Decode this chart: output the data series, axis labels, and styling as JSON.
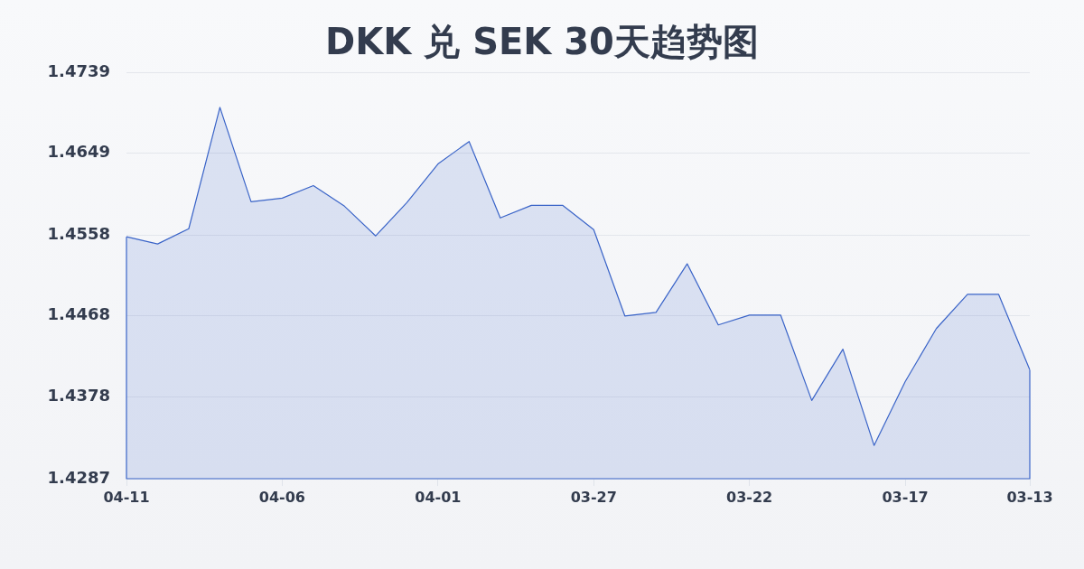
{
  "chart_data": {
    "type": "area",
    "title": "DKK 兑 SEK 30天趋势图",
    "categories": [
      "04-11",
      null,
      null,
      null,
      null,
      "04-06",
      null,
      null,
      null,
      null,
      "04-01",
      null,
      null,
      null,
      null,
      "03-27",
      null,
      null,
      null,
      null,
      "03-22",
      null,
      null,
      null,
      null,
      "03-17",
      null,
      null,
      null,
      "03-13"
    ],
    "series": [
      {
        "color": "#3a64c8",
        "values": [
          1.4556,
          1.4548,
          1.4565,
          1.47,
          1.4595,
          1.4599,
          1.4613,
          1.459,
          1.4557,
          1.4594,
          1.4637,
          1.4662,
          1.4577,
          1.4591,
          1.4591,
          1.4564,
          1.4468,
          1.4472,
          1.4526,
          1.4458,
          1.4469,
          1.4469,
          1.4374,
          1.4431,
          1.4324,
          1.4395,
          1.4454,
          1.4492,
          1.4492,
          1.4408
        ]
      }
    ],
    "ylim": [
      1.4287,
      1.4739
    ],
    "yticks": [
      1.4287,
      1.4378,
      1.4468,
      1.4558,
      1.4649,
      1.4739
    ],
    "grid": "y",
    "legend": false,
    "marker": "none"
  }
}
